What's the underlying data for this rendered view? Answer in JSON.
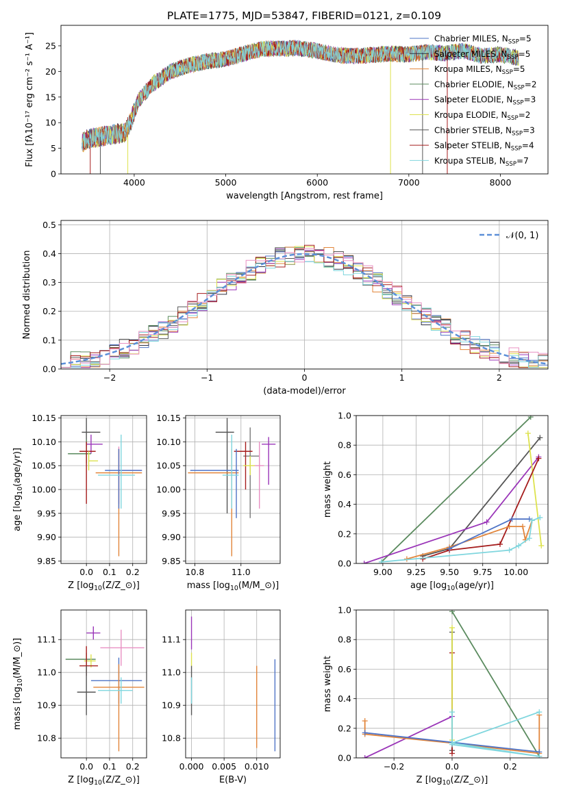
{
  "chart_data": [
    {
      "type": "line",
      "title": "PLATE=1775, MJD=53847, FIBERID=0121, z=0.109",
      "xlabel": "wavelength [Angstrom, rest frame]",
      "ylabel": "Flux [fλ10⁻¹⁷ erg cm⁻² s⁻¹ A⁻¹]",
      "xlim": [
        3200,
        8520
      ],
      "ylim": [
        0,
        29
      ],
      "x_ticks": [
        4000,
        5000,
        6000,
        7000,
        8000
      ],
      "y_ticks": [
        0,
        5,
        10,
        15,
        20,
        25
      ],
      "grid": false,
      "legend_position": "upper-right",
      "series": [
        {
          "name": "Chabrier MILES, N$_{SSP}$=5",
          "color": "#4e73c6"
        },
        {
          "name": "Salpeter MILES, N$_{SSP}$=5",
          "color": "#2e3140"
        },
        {
          "name": "Kroupa MILES, N$_{SSP}$=5",
          "color": "#e2853a"
        },
        {
          "name": "Chabrier ELODIE, N$_{SSP}$=2",
          "color": "#5a8a5e"
        },
        {
          "name": "Salpeter ELODIE, N$_{SSP}$=3",
          "color": "#9a35b8"
        },
        {
          "name": "Kroupa ELODIE, N$_{SSP}$=2",
          "color": "#dde24d"
        },
        {
          "name": "Chabrier STELIB, N$_{SSP}$=3",
          "color": "#555555"
        },
        {
          "name": "Salpeter STELIB, N$_{SSP}$=4",
          "color": "#a51c1c"
        },
        {
          "name": "Kroupa STELIB, N$_{SSP}$=7",
          "color": "#7fd6de"
        }
      ],
      "continuum": {
        "x": [
          3430,
          3480,
          3560,
          3700,
          3800,
          3900,
          3960,
          4050,
          4200,
          4400,
          4600,
          4800,
          5000,
          5200,
          5400,
          5600,
          5800,
          6000,
          6200,
          6400,
          6600,
          6800,
          7000,
          7200,
          7400,
          7600,
          7800,
          8000,
          8200
        ],
        "y": [
          6.0,
          6.8,
          7.0,
          7.5,
          7.8,
          8.0,
          10.2,
          14.5,
          17.5,
          20.0,
          21.2,
          22.0,
          22.4,
          23.5,
          24.4,
          24.5,
          24.5,
          24.0,
          23.2,
          23.0,
          23.2,
          23.5,
          23.3,
          23.8,
          23.5,
          24.0,
          23.0,
          23.3,
          22.6
        ]
      },
      "spikes": [
        {
          "x": 3520,
          "y_min": 0,
          "color": "#a51c1c"
        },
        {
          "x": 3630,
          "y_min": 0,
          "color": "#555555"
        },
        {
          "x": 3930,
          "y_min": 0,
          "color": "#dde24d"
        },
        {
          "x": 6800,
          "y_min": 0,
          "color": "#dde24d"
        },
        {
          "x": 7420,
          "y_min": 0,
          "color": "#a51c1c"
        },
        {
          "x": 7150,
          "y_min": 0,
          "color": "#555555"
        }
      ]
    },
    {
      "type": "histogram",
      "xlabel": "(data-model)/error",
      "ylabel": "Normed distribution",
      "xlim": [
        -2.5,
        2.5
      ],
      "ylim": [
        0,
        0.515
      ],
      "x_ticks": [
        -2,
        -1,
        0,
        1,
        2
      ],
      "y_ticks": [
        0.0,
        0.1,
        0.2,
        0.3,
        0.4,
        0.5
      ],
      "grid": true,
      "legend_position": "upper-right",
      "reference_curve": {
        "name": "$\\mathcal{N}(0, 1)$",
        "color": "#5b8fd8",
        "mean": 0,
        "sigma": 1
      },
      "bin_width": 0.1,
      "bin_range": [
        -2.5,
        2.5
      ],
      "series": [
        {
          "color": "#4e73c6",
          "seed": 11
        },
        {
          "color": "#2e3140",
          "seed": 23
        },
        {
          "color": "#e2853a",
          "seed": 37
        },
        {
          "color": "#5a8a5e",
          "seed": 41
        },
        {
          "color": "#9a35b8",
          "seed": 53
        },
        {
          "color": "#dde24d",
          "seed": 67
        },
        {
          "color": "#555555",
          "seed": 71
        },
        {
          "color": "#a51c1c",
          "seed": 83
        },
        {
          "color": "#7fd6de",
          "seed": 97
        },
        {
          "color": "#e88fc2",
          "seed": 103
        }
      ]
    },
    {
      "type": "errorbar",
      "xlabel": "Z [log$_{10}$($Z/Z_\\odot$)]",
      "ylabel": "age  [log$_{10}$($age/yr$)]",
      "xlim": [
        -0.11,
        0.26
      ],
      "ylim": [
        9.845,
        10.155
      ],
      "x_ticks": [
        0.0,
        0.1,
        0.2
      ],
      "y_ticks": [
        9.85,
        9.9,
        9.95,
        10.0,
        10.05,
        10.1,
        10.15
      ],
      "grid": true,
      "points": [
        {
          "x": 0.0,
          "xerr": [
            0.02,
            0.06
          ],
          "y": 10.12,
          "yerr": [
            0.03,
            0.03
          ],
          "color": "#555555"
        },
        {
          "x": 0.02,
          "xerr": [
            0.02,
            0.05
          ],
          "y": 10.095,
          "yerr": [
            0.02,
            0.02
          ],
          "color": "#9a35b8"
        },
        {
          "x": 0.0,
          "xerr": [
            0.08,
            0.02
          ],
          "y": 10.075,
          "yerr": [
            0.02,
            0.03
          ],
          "color": "#5a8a5e"
        },
        {
          "x": 0.0,
          "xerr": [
            0.03,
            0.04
          ],
          "y": 10.08,
          "yerr": [
            0.11,
            0.02
          ],
          "color": "#a51c1c"
        },
        {
          "x": 0.01,
          "xerr": [
            0.0,
            0.04
          ],
          "y": 10.06,
          "yerr": [
            0.02,
            0.02
          ],
          "color": "#dde24d"
        },
        {
          "x": 0.14,
          "xerr": [
            0.0,
            0.1
          ],
          "y": 10.04,
          "yerr": [
            0.07,
            0.05
          ],
          "color": "#e88fc2"
        },
        {
          "x": 0.14,
          "xerr": [
            0.1,
            0.1
          ],
          "y": 10.035,
          "yerr": [
            0.175,
            0.05
          ],
          "color": "#e2853a"
        },
        {
          "x": 0.14,
          "xerr": [
            0.06,
            0.1
          ],
          "y": 10.04,
          "yerr": [
            0.08,
            0.045
          ],
          "color": "#4e73c6"
        },
        {
          "x": 0.15,
          "xerr": [
            0.1,
            0.06
          ],
          "y": 10.03,
          "yerr": [
            0.07,
            0.085
          ],
          "color": "#7fd6de"
        }
      ]
    },
    {
      "type": "errorbar",
      "xlabel": "mass [log$_{10}$($M/M_\\odot$)]",
      "ylabel": "",
      "xlim": [
        10.76,
        11.17
      ],
      "ylim": [
        9.845,
        10.155
      ],
      "x_ticks": [
        10.8,
        11.0
      ],
      "y_ticks": [
        9.85,
        9.9,
        9.95,
        10.0,
        10.05,
        10.1,
        10.15
      ],
      "grid": true,
      "points": [
        {
          "x": 10.94,
          "xerr": [
            0.05,
            0.03
          ],
          "y": 10.12,
          "yerr": [
            0.17,
            0.03
          ],
          "color": "#555555"
        },
        {
          "x": 11.12,
          "xerr": [
            0.03,
            0.03
          ],
          "y": 10.095,
          "yerr": [
            0.085,
            0.015
          ],
          "color": "#9a35b8"
        },
        {
          "x": 11.04,
          "xerr": [
            0.03,
            0.04
          ],
          "y": 10.07,
          "yerr": [
            0.13,
            0.06
          ],
          "color": "#7a7a7a"
        },
        {
          "x": 11.02,
          "xerr": [
            0.05,
            0.03
          ],
          "y": 10.08,
          "yerr": [
            0.08,
            0.02
          ],
          "color": "#a51c1c"
        },
        {
          "x": 11.08,
          "xerr": [
            0.05,
            0.02
          ],
          "y": 10.05,
          "yerr": [
            0.09,
            0.05
          ],
          "color": "#e88fc2"
        },
        {
          "x": 11.04,
          "xerr": [
            0.03,
            0.02
          ],
          "y": 10.05,
          "yerr": [
            0.02,
            0.02
          ],
          "color": "#dde24d"
        },
        {
          "x": 10.96,
          "xerr": [
            0.19,
            0.03
          ],
          "y": 10.035,
          "yerr": [
            0.175,
            0.05
          ],
          "color": "#e2853a"
        },
        {
          "x": 10.98,
          "xerr": [
            0.2,
            0.01
          ],
          "y": 10.04,
          "yerr": [
            0.1,
            0.045
          ],
          "color": "#4e73c6"
        },
        {
          "x": 10.96,
          "xerr": [
            0.04,
            0.03
          ],
          "y": 10.03,
          "yerr": [
            0.07,
            0.085
          ],
          "color": "#7fd6de"
        }
      ]
    },
    {
      "type": "line",
      "xlabel": "age  [log$_{10}$($age/yr$)]",
      "ylabel": "mass weight",
      "xlim": [
        8.8,
        10.24
      ],
      "ylim": [
        0,
        1.0
      ],
      "x_ticks": [
        9.0,
        9.25,
        9.5,
        9.75,
        10.0
      ],
      "y_ticks": [
        0.0,
        0.2,
        0.4,
        0.6,
        0.8,
        1.0
      ],
      "grid": true,
      "series": [
        {
          "color": "#5a8a5e",
          "x": [
            8.99,
            10.11
          ],
          "y": [
            0.01,
            0.99
          ]
        },
        {
          "color": "#555555",
          "x": [
            9.3,
            9.5,
            10.18
          ],
          "y": [
            0.05,
            0.1,
            0.85
          ]
        },
        {
          "color": "#9a35b8",
          "x": [
            8.86,
            9.78,
            10.17
          ],
          "y": [
            0.0,
            0.28,
            0.72
          ]
        },
        {
          "color": "#dde24d",
          "x": [
            10.09,
            10.19
          ],
          "y": [
            0.88,
            0.12
          ]
        },
        {
          "color": "#a51c1c",
          "x": [
            9.3,
            9.5,
            9.88,
            10.17
          ],
          "y": [
            0.03,
            0.09,
            0.13,
            0.71
          ]
        },
        {
          "color": "#e2853a",
          "x": [
            9.18,
            9.5,
            9.95,
            10.05,
            10.07,
            10.12
          ],
          "y": [
            0.03,
            0.11,
            0.25,
            0.25,
            0.16,
            0.29
          ]
        },
        {
          "color": "#4e73c6",
          "x": [
            9.5,
            9.97,
            10.1
          ],
          "y": [
            0.1,
            0.3,
            0.3
          ]
        },
        {
          "color": "#7fd6de",
          "x": [
            8.99,
            9.95,
            10.02,
            10.1,
            10.12,
            10.18
          ],
          "y": [
            0.01,
            0.09,
            0.12,
            0.17,
            0.29,
            0.31
          ]
        }
      ]
    },
    {
      "type": "errorbar",
      "xlabel": "Z [log$_{10}$($Z/Z_\\odot$)]",
      "ylabel": "mass [log$_{10}$($M/M_\\odot$)]",
      "xlim": [
        -0.11,
        0.26
      ],
      "ylim": [
        10.74,
        11.19
      ],
      "x_ticks": [
        0.0,
        0.1,
        0.2
      ],
      "y_ticks": [
        10.8,
        10.9,
        11.0,
        11.1
      ],
      "grid": true,
      "points": [
        {
          "x": 0.03,
          "xerr": [
            0.03,
            0.03
          ],
          "y": 11.12,
          "yerr": [
            0.02,
            0.02
          ],
          "color": "#9a35b8"
        },
        {
          "x": 0.0,
          "xerr": [
            0.09,
            0.04
          ],
          "y": 11.04,
          "yerr": [
            0.04,
            0.02
          ],
          "color": "#5a8a5e"
        },
        {
          "x": 0.02,
          "xerr": [
            0.03,
            0.02
          ],
          "y": 11.035,
          "yerr": [
            0.02,
            0.02
          ],
          "color": "#dde24d"
        },
        {
          "x": 0.0,
          "xerr": [
            0.03,
            0.05
          ],
          "y": 11.02,
          "yerr": [
            0.03,
            0.06
          ],
          "color": "#a51c1c"
        },
        {
          "x": 0.0,
          "xerr": [
            0.04,
            0.04
          ],
          "y": 10.94,
          "yerr": [
            0.07,
            0.08
          ],
          "color": "#555555"
        },
        {
          "x": 0.15,
          "xerr": [
            0.09,
            0.1
          ],
          "y": 11.075,
          "yerr": [
            0.055,
            0.055
          ],
          "color": "#e88fc2"
        },
        {
          "x": 0.14,
          "xerr": [
            0.12,
            0.1
          ],
          "y": 10.975,
          "yerr": [
            0.07,
            0.07
          ],
          "color": "#4e73c6"
        },
        {
          "x": 0.14,
          "xerr": [
            0.11,
            0.11
          ],
          "y": 10.955,
          "yerr": [
            0.195,
            0.07
          ],
          "color": "#e2853a"
        },
        {
          "x": 0.15,
          "xerr": [
            0.1,
            0.05
          ],
          "y": 10.945,
          "yerr": [
            0.04,
            0.04
          ],
          "color": "#7fd6de"
        }
      ]
    },
    {
      "type": "errorbar",
      "xlabel": "E(B-V)",
      "ylabel": "",
      "xlim": [
        -0.0009,
        0.0136
      ],
      "ylim": [
        10.74,
        11.19
      ],
      "x_ticks": [
        0.0,
        0.005,
        0.01
      ],
      "y_ticks": [
        10.8,
        10.9,
        11.0,
        11.1
      ],
      "grid": true,
      "points": [
        {
          "x": 0.0,
          "xerr": [
            0,
            0
          ],
          "y": 11.12,
          "yerr": [
            0.05,
            0.05
          ],
          "color": "#9a35b8"
        },
        {
          "x": 0.0,
          "xerr": [
            0,
            0
          ],
          "y": 11.04,
          "yerr": [
            0.02,
            0.02
          ],
          "color": "#dde24d"
        },
        {
          "x": 0.0,
          "xerr": [
            0,
            0
          ],
          "y": 10.94,
          "yerr": [
            0.07,
            0.08
          ],
          "color": "#555555"
        },
        {
          "x": 0.0,
          "xerr": [
            0,
            0
          ],
          "y": 10.945,
          "yerr": [
            0.04,
            0.04
          ],
          "color": "#7fd6de"
        },
        {
          "x": 0.01,
          "xerr": [
            0,
            0
          ],
          "y": 10.9,
          "yerr": [
            0.13,
            0.12
          ],
          "color": "#e2853a"
        },
        {
          "x": 0.0128,
          "xerr": [
            0,
            0
          ],
          "y": 10.9,
          "yerr": [
            0.14,
            0.14
          ],
          "color": "#4e73c6"
        }
      ]
    },
    {
      "type": "line",
      "xlabel": "Z [log$_{10}$($Z/Z_\\odot$)]",
      "ylabel": "mass weight",
      "xlim": [
        -0.33,
        0.33
      ],
      "ylim": [
        0,
        1.0
      ],
      "x_ticks": [
        -0.2,
        0.0,
        0.2
      ],
      "y_ticks": [
        0.0,
        0.2,
        0.4,
        0.6,
        0.8,
        1.0
      ],
      "grid": true,
      "series": [
        {
          "color": "#5a8a5e",
          "x": [
            0.0,
            0.3
          ],
          "y": [
            0.99,
            0.01
          ]
        },
        {
          "color": "#555555",
          "x": [
            0.0,
            0.0
          ],
          "y": [
            0.05,
            0.85
          ]
        },
        {
          "color": "#a51c1c",
          "x": [
            0.0,
            0.0
          ],
          "y": [
            0.03,
            0.71
          ]
        },
        {
          "color": "#dde24d",
          "x": [
            0.0,
            0.0
          ],
          "y": [
            0.12,
            0.88
          ]
        },
        {
          "color": "#9a35b8",
          "x": [
            -0.3,
            0.0
          ],
          "y": [
            0.0,
            0.28
          ]
        },
        {
          "color": "#e2853a",
          "x": [
            -0.3,
            -0.3,
            0.0,
            0.3,
            0.3
          ],
          "y": [
            0.25,
            0.16,
            0.1,
            0.03,
            0.29
          ]
        },
        {
          "color": "#4e73c6",
          "x": [
            -0.3,
            0.3
          ],
          "y": [
            0.17,
            0.04
          ]
        },
        {
          "color": "#7fd6de",
          "x": [
            0.0,
            0.0,
            0.3,
            0.0,
            0.3
          ],
          "y": [
            0.31,
            0.09,
            0.01,
            0.1,
            0.31
          ]
        }
      ]
    }
  ]
}
